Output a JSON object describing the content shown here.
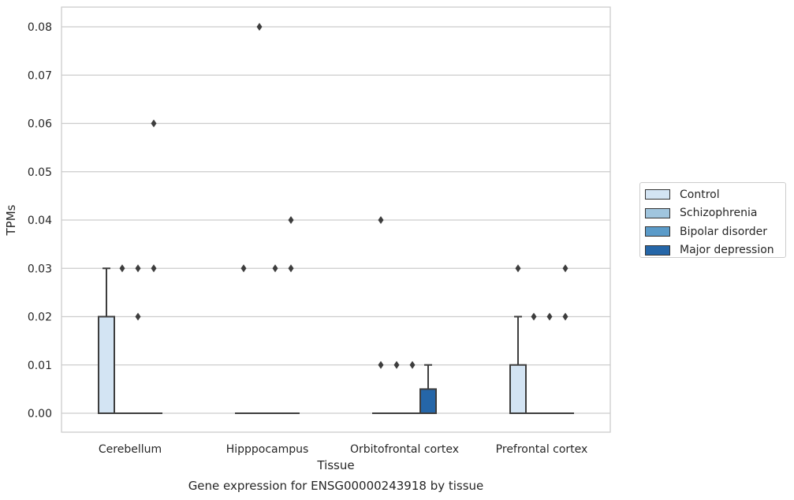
{
  "chart_data": {
    "type": "box",
    "title": "Gene expression for ENSG00000243918 by tissue",
    "xlabel": "Tissue",
    "ylabel": "TPMs",
    "categories": [
      "Cerebellum",
      "Hipppocampus",
      "Orbitofrontal cortex",
      "Prefrontal cortex"
    ],
    "ylim": [
      -0.004,
      0.084
    ],
    "yticks": [
      "0.00",
      "0.01",
      "0.02",
      "0.03",
      "0.04",
      "0.05",
      "0.06",
      "0.07",
      "0.08"
    ],
    "grid": true,
    "legend_position": "right",
    "series": [
      {
        "name": "Control",
        "color": "#d3e4f3",
        "boxes": [
          {
            "q1": 0,
            "median": 0,
            "q3": 0.02,
            "whisker_low": 0,
            "whisker_high": 0.03,
            "outliers": []
          },
          {
            "q1": 0,
            "median": 0,
            "q3": 0,
            "whisker_low": 0,
            "whisker_high": 0,
            "outliers": [
              0.03
            ]
          },
          {
            "q1": 0,
            "median": 0,
            "q3": 0,
            "whisker_low": 0,
            "whisker_high": 0,
            "outliers": [
              0.04,
              0.01
            ]
          },
          {
            "q1": 0,
            "median": 0,
            "q3": 0.01,
            "whisker_low": 0,
            "whisker_high": 0.02,
            "outliers": [
              0.03
            ]
          }
        ]
      },
      {
        "name": "Schizophrenia",
        "color": "#a0c5de",
        "boxes": [
          {
            "q1": 0,
            "median": 0,
            "q3": 0,
            "whisker_low": 0,
            "whisker_high": 0,
            "outliers": [
              0.03
            ]
          },
          {
            "q1": 0,
            "median": 0,
            "q3": 0,
            "whisker_low": 0,
            "whisker_high": 0,
            "outliers": [
              0.08
            ]
          },
          {
            "q1": 0,
            "median": 0,
            "q3": 0,
            "whisker_low": 0,
            "whisker_high": 0,
            "outliers": [
              0.01
            ]
          },
          {
            "q1": 0,
            "median": 0,
            "q3": 0,
            "whisker_low": 0,
            "whisker_high": 0,
            "outliers": [
              0.02
            ]
          }
        ]
      },
      {
        "name": "Bipolar disorder",
        "color": "#5b9bc9",
        "boxes": [
          {
            "q1": 0,
            "median": 0,
            "q3": 0,
            "whisker_low": 0,
            "whisker_high": 0,
            "outliers": [
              0.03,
              0.02
            ]
          },
          {
            "q1": 0,
            "median": 0,
            "q3": 0,
            "whisker_low": 0,
            "whisker_high": 0,
            "outliers": [
              0.03
            ]
          },
          {
            "q1": 0,
            "median": 0,
            "q3": 0,
            "whisker_low": 0,
            "whisker_high": 0,
            "outliers": [
              0.01
            ]
          },
          {
            "q1": 0,
            "median": 0,
            "q3": 0,
            "whisker_low": 0,
            "whisker_high": 0,
            "outliers": [
              0.02
            ]
          }
        ]
      },
      {
        "name": "Major depression",
        "color": "#2566a8",
        "boxes": [
          {
            "q1": 0,
            "median": 0,
            "q3": 0,
            "whisker_low": 0,
            "whisker_high": 0,
            "outliers": [
              0.06,
              0.03
            ]
          },
          {
            "q1": 0,
            "median": 0,
            "q3": 0,
            "whisker_low": 0,
            "whisker_high": 0,
            "outliers": [
              0.04,
              0.03
            ]
          },
          {
            "q1": 0,
            "median": 0,
            "q3": 0.005,
            "whisker_low": 0,
            "whisker_high": 0.01,
            "outliers": []
          },
          {
            "q1": 0,
            "median": 0,
            "q3": 0,
            "whisker_low": 0,
            "whisker_high": 0,
            "outliers": [
              0.03,
              0.02
            ]
          }
        ]
      }
    ]
  }
}
